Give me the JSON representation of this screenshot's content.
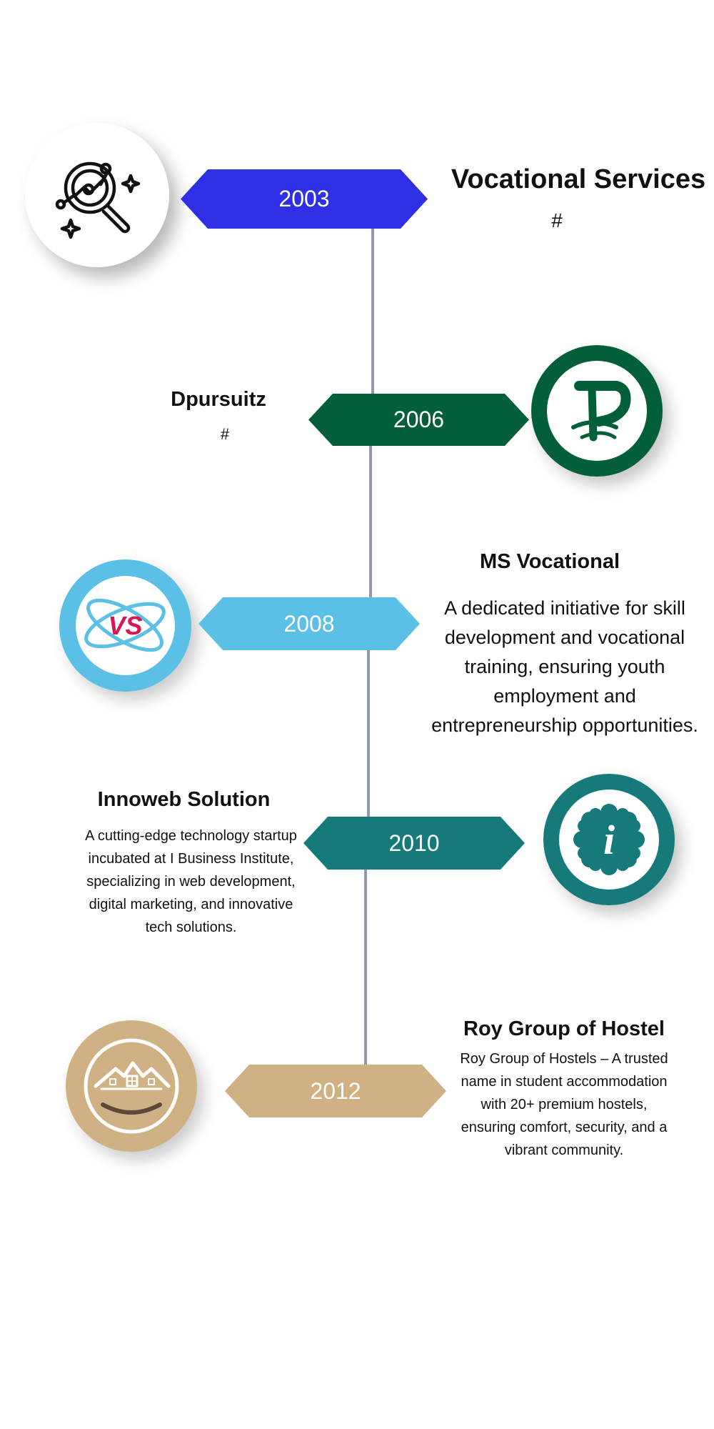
{
  "timeline": [
    {
      "year": "2003",
      "title": "Vocational Services",
      "subtitle": "#",
      "color": "#2f2fe6",
      "icon": "analytics-magnifier-icon"
    },
    {
      "year": "2006",
      "title": "Dpursuitz",
      "subtitle": "#",
      "color": "#035f3a",
      "icon": "dp-logo-icon"
    },
    {
      "year": "2008",
      "title": "MS Vocational",
      "description": "A dedicated initiative for skill development and vocational training, ensuring youth employment and entrepreneurship opportunities.",
      "color": "#5bbfe6",
      "icon": "vs-logo-icon",
      "logo_text": "VS"
    },
    {
      "year": "2010",
      "title": "Innoweb Solution",
      "description": "A cutting-edge technology startup incubated at I Business Institute, specializing in web development, digital marketing, and innovative tech solutions.",
      "color": "#177a7a",
      "icon": "info-flower-icon",
      "logo_text": "i"
    },
    {
      "year": "2012",
      "title": "Roy Group of Hostel",
      "description": "Roy Group of Hostels – A trusted name in student accommodation with 20+ premium hostels, ensuring comfort, security, and a vibrant community.",
      "color": "#cfb183",
      "icon": "houses-logo-icon"
    }
  ]
}
